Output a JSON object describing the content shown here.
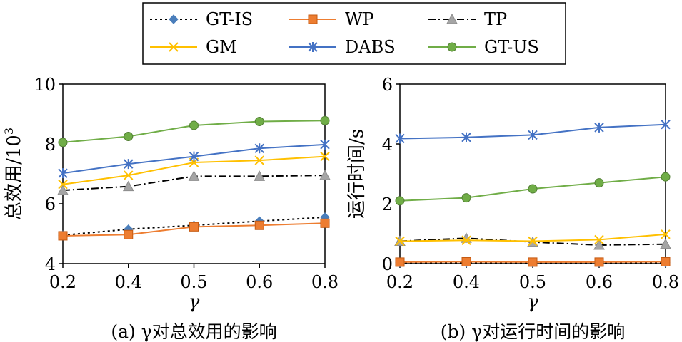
{
  "legend": [
    {
      "name": "GT-IS",
      "color": "#4a7ebb",
      "marker": "diamond",
      "dash": "3,4",
      "line_color": "#000000"
    },
    {
      "name": "WP",
      "color": "#ed7d31",
      "marker": "square",
      "dash": "",
      "line_color": "#ed7d31"
    },
    {
      "name": "TP",
      "color": "#a5a5a5",
      "marker": "triangle",
      "dash": "10,4,2,4",
      "line_color": "#000000"
    },
    {
      "name": "GM",
      "color": "#ffc000",
      "marker": "x",
      "dash": "",
      "line_color": "#ffc000"
    },
    {
      "name": "DABS",
      "color": "#4472c4",
      "marker": "star",
      "dash": "",
      "line_color": "#4472c4"
    },
    {
      "name": "GT-US",
      "color": "#70ad47",
      "marker": "circle",
      "dash": "",
      "line_color": "#70ad47"
    }
  ],
  "chart_data": [
    {
      "type": "line",
      "categories": [
        "0.2",
        "0.4",
        "0.5",
        "0.6",
        "0.8"
      ],
      "ylabel": "总效用/10³",
      "ylabel_main": "总效用/10",
      "ylabel_sup": "3",
      "xlabel": "γ",
      "ylim": [
        4,
        10
      ],
      "yticks": [
        "4",
        "6",
        "8",
        "10"
      ],
      "caption": "(a) γ对总效用的影响",
      "series": [
        {
          "name": "GT-IS",
          "values": [
            4.95,
            5.15,
            5.28,
            5.42,
            5.55
          ]
        },
        {
          "name": "WP",
          "values": [
            4.93,
            4.97,
            5.23,
            5.28,
            5.35
          ]
        },
        {
          "name": "TP",
          "values": [
            6.45,
            6.58,
            6.92,
            6.92,
            6.95
          ]
        },
        {
          "name": "GM",
          "values": [
            6.65,
            6.95,
            7.38,
            7.45,
            7.58
          ]
        },
        {
          "name": "DABS",
          "values": [
            7.02,
            7.33,
            7.58,
            7.85,
            7.98
          ]
        },
        {
          "name": "GT-US",
          "values": [
            8.05,
            8.25,
            8.62,
            8.75,
            8.78
          ]
        }
      ]
    },
    {
      "type": "line",
      "categories": [
        "0.2",
        "0.4",
        "0.5",
        "0.6",
        "0.8"
      ],
      "ylabel": "运行时间/s",
      "xlabel": "γ",
      "ylim": [
        0,
        6
      ],
      "yticks": [
        "0",
        "2",
        "4",
        "6"
      ],
      "caption": "(b) γ对运行时间的影响",
      "series": [
        {
          "name": "GT-IS",
          "values": [
            0.03,
            0.03,
            0.03,
            0.03,
            0.03
          ]
        },
        {
          "name": "WP",
          "values": [
            0.05,
            0.06,
            0.05,
            0.05,
            0.06
          ]
        },
        {
          "name": "TP",
          "values": [
            0.75,
            0.85,
            0.72,
            0.62,
            0.65
          ]
        },
        {
          "name": "GM",
          "values": [
            0.75,
            0.78,
            0.75,
            0.8,
            0.98
          ]
        },
        {
          "name": "DABS",
          "values": [
            4.18,
            4.22,
            4.3,
            4.55,
            4.65
          ]
        },
        {
          "name": "GT-US",
          "values": [
            2.1,
            2.2,
            2.5,
            2.7,
            2.9
          ]
        }
      ]
    }
  ]
}
